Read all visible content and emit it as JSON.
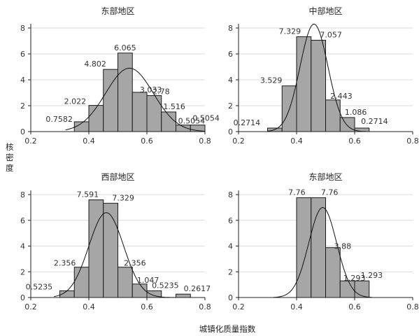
{
  "ylabel": "核密度",
  "xlabel": "城镇化质量指数",
  "chart_data": [
    {
      "type": "bar",
      "title": "东部地区",
      "xlim": [
        0.2,
        0.8
      ],
      "ylim": [
        0,
        8
      ],
      "xticks": [
        "0.2",
        "0.4",
        "0.6",
        "0.8"
      ],
      "yticks": [
        "0",
        "2",
        "4",
        "6",
        "8"
      ],
      "bin_width": 0.05,
      "bins": [
        {
          "x0": 0.35,
          "value": 0.7582,
          "label": "0.7582"
        },
        {
          "x0": 0.4,
          "value": 2.022,
          "label": "2.022"
        },
        {
          "x0": 0.45,
          "value": 4.802,
          "label": "4.802"
        },
        {
          "x0": 0.5,
          "value": 6.065,
          "label": "6.065"
        },
        {
          "x0": 0.55,
          "value": 3.033,
          "label": "3.033"
        },
        {
          "x0": 0.6,
          "value": 2.78,
          "label": "2.78"
        },
        {
          "x0": 0.65,
          "value": 1.516,
          "label": "1.516"
        },
        {
          "x0": 0.7,
          "value": 0.5054,
          "label": "0.5054"
        },
        {
          "x0": 0.75,
          "value": 0.5054,
          "label": "0.5054"
        }
      ],
      "density_curve": {
        "mean": 0.54,
        "sd": 0.082,
        "peak": 4.9,
        "range": [
          0.32,
          0.8
        ]
      }
    },
    {
      "type": "bar",
      "title": "中部地区",
      "xlim": [
        0.2,
        0.8
      ],
      "ylim": [
        0,
        8
      ],
      "xticks": [
        "0.2",
        "0.4",
        "0.6",
        "0.8"
      ],
      "yticks": [
        "0",
        "2",
        "4",
        "6",
        "8"
      ],
      "bin_width": 0.05,
      "bins": [
        {
          "x0": 0.3,
          "value": 0.2714,
          "label": "0.2714"
        },
        {
          "x0": 0.35,
          "value": 3.529,
          "label": "3.529"
        },
        {
          "x0": 0.4,
          "value": 7.329,
          "label": "7.329"
        },
        {
          "x0": 0.45,
          "value": 7.057,
          "label": "7.057"
        },
        {
          "x0": 0.5,
          "value": 2.443,
          "label": "2.443"
        },
        {
          "x0": 0.55,
          "value": 1.086,
          "label": "1.086"
        },
        {
          "x0": 0.6,
          "value": 0.2714,
          "label": "0.2714"
        }
      ],
      "density_curve": {
        "mean": 0.46,
        "sd": 0.048,
        "peak": 8.3,
        "range": [
          0.3,
          0.64
        ]
      }
    },
    {
      "type": "bar",
      "title": "西部地区",
      "xlim": [
        0.2,
        0.8
      ],
      "ylim": [
        0,
        8
      ],
      "xticks": [
        "0.2",
        "0.4",
        "0.6",
        "0.8"
      ],
      "yticks": [
        "0",
        "2",
        "4",
        "6",
        "8"
      ],
      "bin_width": 0.05,
      "bins": [
        {
          "x0": 0.3,
          "value": 0.5235,
          "label": "0.5235"
        },
        {
          "x0": 0.35,
          "value": 2.356,
          "label": "2.356"
        },
        {
          "x0": 0.4,
          "value": 7.591,
          "label": "7.591"
        },
        {
          "x0": 0.45,
          "value": 7.329,
          "label": "7.329"
        },
        {
          "x0": 0.5,
          "value": 2.356,
          "label": "2.356"
        },
        {
          "x0": 0.55,
          "value": 1.047,
          "label": "1.047"
        },
        {
          "x0": 0.6,
          "value": 0.5235,
          "label": "0.5235"
        },
        {
          "x0": 0.7,
          "value": 0.2617,
          "label": "0.2617"
        }
      ],
      "density_curve": {
        "mean": 0.46,
        "sd": 0.06,
        "peak": 6.6,
        "range": [
          0.28,
          0.72
        ]
      }
    },
    {
      "type": "bar",
      "title": "东部地区",
      "xlim": [
        0.2,
        0.8
      ],
      "ylim": [
        0,
        8
      ],
      "xticks": [
        "0.2",
        "0.4",
        "0.6",
        "0.8"
      ],
      "yticks": [
        "0",
        "2",
        "4",
        "6",
        "8"
      ],
      "bin_width": 0.05,
      "bins": [
        {
          "x0": 0.4,
          "value": 7.76,
          "label": "7.76"
        },
        {
          "x0": 0.45,
          "value": 7.76,
          "label": "7.76"
        },
        {
          "x0": 0.5,
          "value": 3.88,
          "label": "3.88"
        },
        {
          "x0": 0.55,
          "value": 1.293,
          "label": "1.293"
        },
        {
          "x0": 0.6,
          "value": 1.293,
          "label": "1.293"
        }
      ],
      "density_curve": {
        "mean": 0.49,
        "sd": 0.048,
        "peak": 7.0,
        "range": [
          0.32,
          0.66
        ]
      }
    }
  ]
}
